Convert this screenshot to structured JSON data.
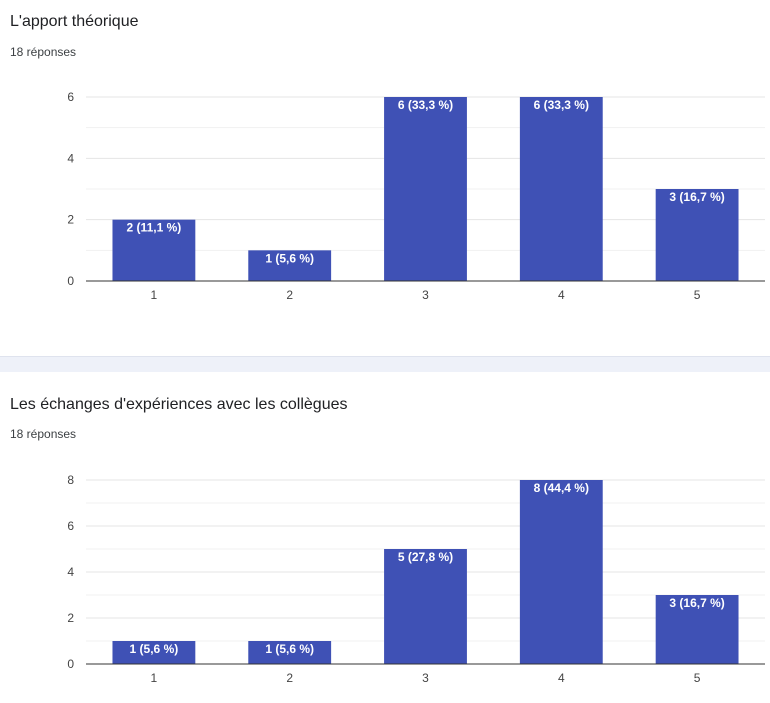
{
  "colors": {
    "bar": "#3f51b5",
    "grid": "#e5e5e5",
    "axis": "#333333"
  },
  "chart_data": [
    {
      "type": "bar",
      "title": "L'apport théorique",
      "responses": "18 réponses",
      "categories": [
        "1",
        "2",
        "3",
        "4",
        "5"
      ],
      "values": [
        2,
        1,
        6,
        6,
        3
      ],
      "data_labels": [
        "2 (11,1 %)",
        "1 (5,6 %)",
        "6 (33,3 %)",
        "6 (33,3 %)",
        "3 (16,7 %)"
      ],
      "yticks": [
        0,
        2,
        4,
        6
      ],
      "ylim": [
        0,
        6
      ],
      "xlabel": "",
      "ylabel": "",
      "grid": true
    },
    {
      "type": "bar",
      "title": "Les échanges d'expériences avec les collègues",
      "responses": "18 réponses",
      "categories": [
        "1",
        "2",
        "3",
        "4",
        "5"
      ],
      "values": [
        1,
        1,
        5,
        8,
        3
      ],
      "data_labels": [
        "1 (5,6 %)",
        "1 (5,6 %)",
        "5 (27,8 %)",
        "8 (44,4 %)",
        "3 (16,7 %)"
      ],
      "yticks": [
        0,
        2,
        4,
        6,
        8
      ],
      "ylim": [
        0,
        8
      ],
      "xlabel": "",
      "ylabel": "",
      "grid": true
    }
  ]
}
